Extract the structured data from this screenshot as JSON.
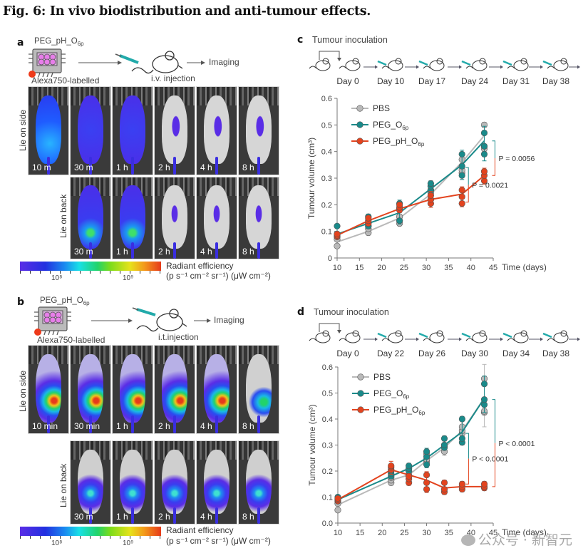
{
  "figure": {
    "title": "Fig. 6: In vivo biodistribution and anti-tumour effects."
  },
  "panel_a": {
    "letter": "a",
    "construct_name": "PEG_pH_O",
    "construct_sub": "6p",
    "label_below": "Alexa750-labelled",
    "injection": "i.v. injection",
    "imaging": "Imaging",
    "row1_label": "Lie on side",
    "row2_label": "Lie on back",
    "row1_times": [
      "10 m",
      "30 m",
      "1 h",
      "2 h",
      "4 h",
      "8 h"
    ],
    "row2_times": [
      "30 m",
      "1 h",
      "2 h",
      "4 h",
      "8 h"
    ],
    "colorbar": {
      "title": "Radiant efficiency",
      "units": "(p s⁻¹ cm⁻² sr⁻¹) (μW cm⁻²)",
      "tick1": "10⁸",
      "tick2": "10⁹"
    }
  },
  "panel_b": {
    "letter": "b",
    "construct_name": "PEG_pH_O",
    "construct_sub": "6p",
    "label_below": "Alexa750-labelled",
    "injection": "i.t.injection",
    "imaging": "Imaging",
    "row1_label": "Lie on side",
    "row2_label": "Lie on back",
    "row1_times": [
      "10 min",
      "30 min",
      "1 h",
      "2 h",
      "4 h",
      "8 h"
    ],
    "row2_times": [
      "30 m",
      "1 h",
      "2 h",
      "4 h",
      "8 h"
    ],
    "colorbar": {
      "title": "Radiant efficiency",
      "units": "(p s⁻¹ cm⁻² sr⁻¹) (μW cm⁻²)",
      "tick1": "10⁸",
      "tick2": "10⁹"
    }
  },
  "panel_c": {
    "letter": "c",
    "timeline_title": "Tumour inoculation",
    "days": [
      "Day 0",
      "Day 10",
      "Day 17",
      "Day 24",
      "Day 31",
      "Day 38"
    ]
  },
  "panel_d": {
    "letter": "d",
    "timeline_title": "Tumour inoculation",
    "days": [
      "Day 0",
      "Day 22",
      "Day 26",
      "Day 30",
      "Day 34",
      "Day 38"
    ]
  },
  "colors": {
    "pbs": "#b9b9b9",
    "peg_o6p": "#1a8a8a",
    "peg_ph_o6p": "#e3431e"
  },
  "chart_data": [
    {
      "id": "c",
      "type": "line",
      "title": "",
      "xlabel": "Time (days)",
      "ylabel": "Tumour volume (cm³)",
      "xlim": [
        10,
        45
      ],
      "ylim": [
        0,
        0.6
      ],
      "xticks": [
        10,
        15,
        20,
        25,
        30,
        35,
        40,
        45
      ],
      "yticks": [
        "0",
        "0.1",
        "0.2",
        "0.3",
        "0.4",
        "0.5",
        "0.6"
      ],
      "legend_position": "top-left",
      "x": [
        10,
        17,
        24,
        31,
        38,
        43
      ],
      "series": [
        {
          "name": "PBS",
          "sub": "",
          "key": "pbs",
          "mean": [
            0.06,
            0.1,
            0.15,
            0.24,
            0.36,
            0.46
          ],
          "points": [
            [
              0.045,
              0.07,
              0.08
            ],
            [
              0.095,
              0.11,
              0.12
            ],
            [
              0.13,
              0.14,
              0.155
            ],
            [
              0.22,
              0.245,
              0.255
            ],
            [
              0.32,
              0.33,
              0.37
            ],
            [
              0.41,
              0.42,
              0.5
            ]
          ],
          "err": [
            0.01,
            0.02,
            0.02,
            0.03,
            0.05,
            0.02
          ]
        },
        {
          "name": "PEG_O",
          "sub": "6p",
          "key": "peg_o6p",
          "mean": [
            0.09,
            0.13,
            0.17,
            0.26,
            0.35,
            0.44
          ],
          "points": [
            [
              0.08,
              0.09,
              0.12
            ],
            [
              0.12,
              0.13,
              0.155
            ],
            [
              0.14,
              0.185,
              0.205
            ],
            [
              0.255,
              0.27,
              0.28
            ],
            [
              0.31,
              0.345,
              0.39
            ],
            [
              0.39,
              0.42,
              0.47
            ]
          ],
          "err": [
            0.01,
            0.02,
            0.025,
            0.02,
            0.03,
            0.05
          ]
        },
        {
          "name": "PEG_pH_O",
          "sub": "6p",
          "key": "peg_ph_o6p",
          "mean": [
            0.085,
            0.14,
            0.185,
            0.22,
            0.24,
            0.31
          ],
          "points": [
            [
              0.08,
              0.085,
              0.09
            ],
            [
              0.13,
              0.14,
              0.15
            ],
            [
              0.18,
              0.19,
              0.2
            ],
            [
              0.205,
              0.22,
              0.235
            ],
            [
              0.205,
              0.23,
              0.255
            ],
            [
              0.29,
              0.31,
              0.325
            ]
          ],
          "err": [
            0.01,
            0.015,
            0.02,
            0.03,
            0.025,
            0.025
          ]
        }
      ],
      "annotations": [
        {
          "text": "P = 0.0021",
          "x": 38,
          "y_top": 0.34,
          "y_bottom": 0.21,
          "color_top": "peg_o6p",
          "color_bottom": "peg_ph_o6p"
        },
        {
          "text": "P = 0.0056",
          "x": 43,
          "y_top": 0.44,
          "y_bottom": 0.31,
          "color_top": "peg_o6p",
          "color_bottom": "peg_ph_o6p"
        }
      ]
    },
    {
      "id": "d",
      "type": "line",
      "title": "",
      "xlabel": "Time (days)",
      "ylabel": "Tumour volume (cm³)",
      "xlim": [
        10,
        45
      ],
      "ylim": [
        0,
        0.6
      ],
      "xticks": [
        10,
        15,
        20,
        25,
        30,
        35,
        40,
        45
      ],
      "yticks": [
        "0.0",
        "0.1",
        "0.2",
        "0.3",
        "0.4",
        "0.5",
        "0.6"
      ],
      "legend_position": "top-left",
      "x": [
        10,
        22,
        26,
        30,
        34,
        38,
        43
      ],
      "series": [
        {
          "name": "PBS",
          "sub": "",
          "key": "pbs",
          "mean": [
            0.07,
            0.165,
            0.185,
            0.24,
            0.29,
            0.355,
            0.48
          ],
          "points": [
            [
              0.05,
              0.075,
              0.085
            ],
            [
              0.155,
              0.165,
              0.175
            ],
            [
              0.18,
              0.185,
              0.2
            ],
            [
              0.235,
              0.245,
              0.265
            ],
            [
              0.275,
              0.295,
              0.3
            ],
            [
              0.345,
              0.355,
              0.37
            ],
            [
              0.425,
              0.43,
              0.555
            ]
          ],
          "err": [
            0.01,
            0.02,
            0.02,
            0.03,
            0.03,
            0.04,
            0.11
          ]
        },
        {
          "name": "PEG_O",
          "sub": "6p",
          "key": "peg_o6p",
          "mean": [
            0.09,
            0.18,
            0.21,
            0.25,
            0.3,
            0.35,
            0.48
          ],
          "points": [
            [
              0.085,
              0.09,
              0.1
            ],
            [
              0.18,
              0.19,
              0.2
            ],
            [
              0.2,
              0.21,
              0.22
            ],
            [
              0.225,
              0.255,
              0.275
            ],
            [
              0.29,
              0.3,
              0.325
            ],
            [
              0.31,
              0.325,
              0.4
            ],
            [
              0.455,
              0.475,
              0.535
            ]
          ],
          "err": [
            0.01,
            0.02,
            0.02,
            0.025,
            0.02,
            0.02,
            0.06
          ]
        },
        {
          "name": "PEG_pH_O",
          "sub": "6p",
          "key": "peg_ph_o6p",
          "mean": [
            0.09,
            0.205,
            0.185,
            0.165,
            0.135,
            0.14,
            0.14
          ],
          "points": [
            [
              0.085,
              0.09,
              0.095
            ],
            [
              0.205,
              0.215,
              0.22
            ],
            [
              0.155,
              0.17,
              0.18
            ],
            [
              0.13,
              0.155,
              0.185
            ],
            [
              0.12,
              0.13,
              0.155
            ],
            [
              0.13,
              0.14,
              0.15
            ],
            [
              0.135,
              0.14,
              0.15
            ]
          ],
          "err": [
            0.01,
            0.035,
            0.02,
            0.025,
            0.02,
            0.02,
            0.02
          ]
        }
      ],
      "annotations": [
        {
          "text": "P < 0.0001",
          "x": 38,
          "y_top": 0.345,
          "y_bottom": 0.15,
          "color_top": "peg_o6p",
          "color_bottom": "peg_ph_o6p"
        },
        {
          "text": "P < 0.0001",
          "x": 43,
          "y_top": 0.475,
          "y_bottom": 0.14,
          "color_top": "peg_o6p",
          "color_bottom": "peg_ph_o6p"
        }
      ]
    }
  ],
  "watermark": "公众号 · 新智元"
}
